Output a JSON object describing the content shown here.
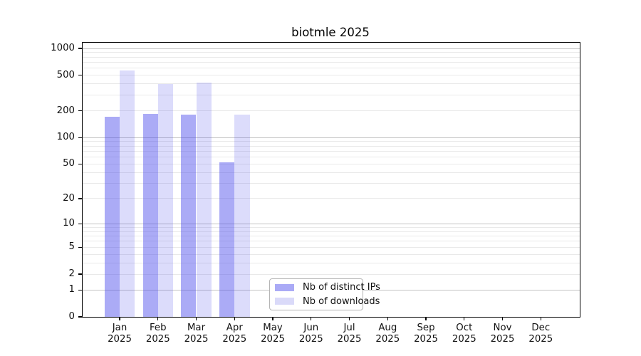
{
  "chart_data": {
    "type": "bar",
    "title": "biotmle 2025",
    "categories": [
      "Jan",
      "Feb",
      "Mar",
      "Apr",
      "May",
      "Jun",
      "Jul",
      "Aug",
      "Sep",
      "Oct",
      "Nov",
      "Dec"
    ],
    "category_year": "2025",
    "series": [
      {
        "key": "ips",
        "name": "Nb of distinct IPs",
        "values": [
          173,
          186,
          182,
          52,
          null,
          null,
          null,
          null,
          null,
          null,
          null,
          null
        ],
        "bar_color": "rgba(68,68,235,0.45)",
        "legend_color": "#aaaaf6"
      },
      {
        "key": "downloads",
        "name": "Nb of downloads",
        "values": [
          565,
          398,
          415,
          182,
          null,
          null,
          null,
          null,
          null,
          null,
          null,
          null
        ],
        "bar_color": "rgba(68,68,235,0.19)",
        "legend_color": "#dadaf9"
      }
    ],
    "yscale": "log10(value+1)",
    "ylim": [
      0,
      1000
    ],
    "yticks": [
      0,
      1,
      2,
      5,
      10,
      20,
      50,
      100,
      200,
      500,
      1000
    ],
    "grid": true,
    "legend_position": "inside-bottom-center",
    "colors": {
      "grid_major": "#c3c3c3",
      "grid_minor": "#e9e9e9",
      "spine": "#000000",
      "background": "#ffffff",
      "text": "#111111"
    }
  }
}
